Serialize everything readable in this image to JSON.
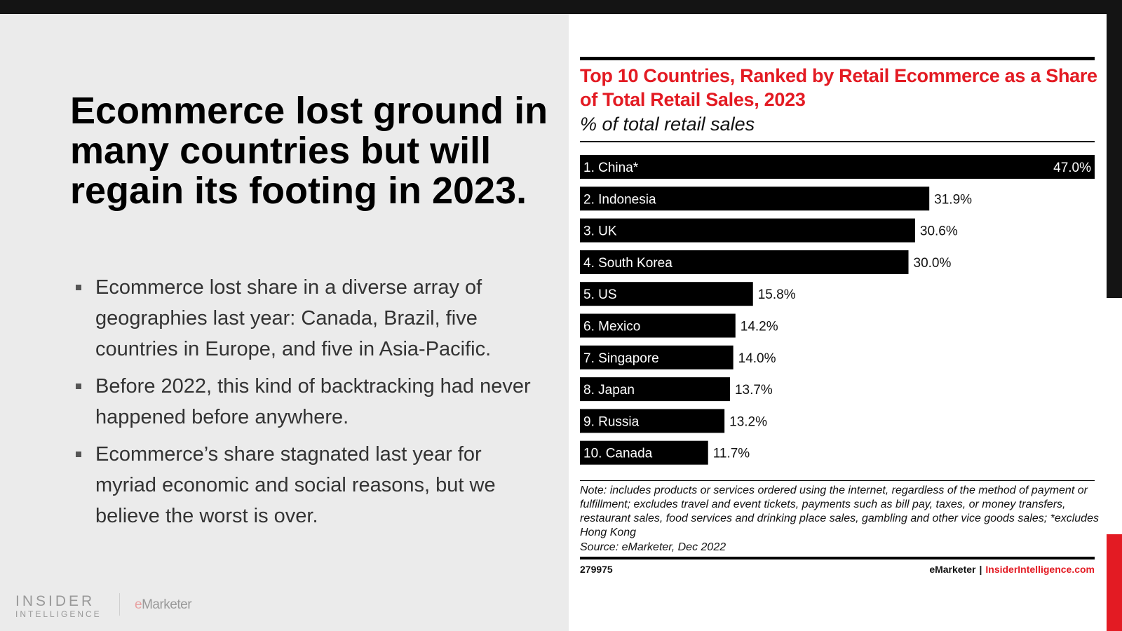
{
  "slide": {
    "headline": "Ecommerce lost ground in many countries but will regain its footing in 2023.",
    "bullets": [
      "Ecommerce lost share in a diverse array of geographies last year: Canada, Brazil, five countries in Europe, and five in Asia-Pacific.",
      "Before 2022, this kind of backtracking had never happened before anywhere.",
      "Ecommerce’s share stagnated last year for myriad economic and social reasons, but we believe the worst is over."
    ],
    "logo": {
      "insider": "INSIDER",
      "intelligence": "INTELLIGENCE",
      "emarketer_e": "e",
      "emarketer_rest": "Marketer"
    }
  },
  "colors": {
    "accent": "#e31b23",
    "bar": "#000000",
    "dark": "#141414"
  },
  "chart_data": {
    "type": "bar",
    "orientation": "horizontal",
    "title": "Top 10 Countries, Ranked by Retail Ecommerce as a Share of Total Retail Sales, 2023",
    "subtitle": "% of total retail sales",
    "categories": [
      "1. China*",
      "2. Indonesia",
      "3. UK",
      "4. South Korea",
      "5. US",
      "6. Mexico",
      "7. Singapore",
      "8. Japan",
      "9. Russia",
      "10. Canada"
    ],
    "values": [
      47.0,
      31.9,
      30.6,
      30.0,
      15.8,
      14.2,
      14.0,
      13.7,
      13.2,
      11.7
    ],
    "value_labels": [
      "47.0%",
      "31.9%",
      "30.6%",
      "30.0%",
      "15.8%",
      "14.2%",
      "14.0%",
      "13.7%",
      "13.2%",
      "11.7%"
    ],
    "xlim": [
      0,
      47.0
    ],
    "note": "Note: includes products or services ordered using the internet, regardless of the method of payment or fulfillment; excludes travel and event tickets, payments such as bill pay, taxes, or money transfers, restaurant sales, food services and drinking place sales, gambling and other vice goods sales; *excludes Hong Kong",
    "source": "Source: eMarketer, Dec 2022",
    "chart_id": "279975",
    "footer_brand": "eMarketer",
    "footer_separator": "|",
    "footer_site": "InsiderIntelligence.com"
  }
}
